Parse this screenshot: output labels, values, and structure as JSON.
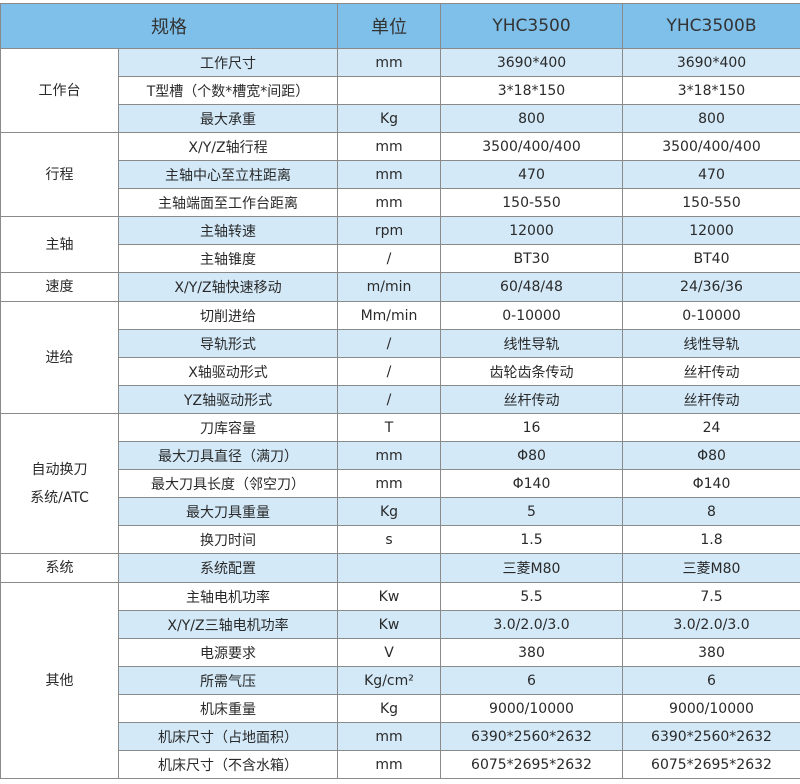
{
  "header": {
    "spec": "规格",
    "unit": "单位",
    "model_a": "YHC3500",
    "model_b": "YHC3500B"
  },
  "colors": {
    "header_bg": "#7fc0ea",
    "alt_row_bg": "#d3e9f8",
    "border": "#8a8a8a"
  },
  "groups": [
    {
      "name": "工作台",
      "rows": [
        {
          "item": "工作尺寸",
          "unit": "mm",
          "a": "3690*400",
          "b": "3690*400"
        },
        {
          "item": "T型槽（个数*槽宽*间距）",
          "unit": "",
          "a": "3*18*150",
          "b": "3*18*150"
        },
        {
          "item": "最大承重",
          "unit": "Kg",
          "a": "800",
          "b": "800"
        }
      ]
    },
    {
      "name": "行程",
      "rows": [
        {
          "item": "X/Y/Z轴行程",
          "unit": "mm",
          "a": "3500/400/400",
          "b": "3500/400/400"
        },
        {
          "item": "主轴中心至立柱距离",
          "unit": "mm",
          "a": "470",
          "b": "470"
        },
        {
          "item": "主轴端面至工作台距离",
          "unit": "mm",
          "a": "150-550",
          "b": "150-550"
        }
      ]
    },
    {
      "name": "主轴",
      "rows": [
        {
          "item": "主轴转速",
          "unit": "rpm",
          "a": "12000",
          "b": "12000"
        },
        {
          "item": "主轴锥度",
          "unit": "/",
          "a": "BT30",
          "b": "BT40"
        }
      ]
    },
    {
      "name": "速度",
      "rows": [
        {
          "item": "X/Y/Z轴快速移动",
          "unit": "m/min",
          "a": "60/48/48",
          "b": "24/36/36"
        }
      ]
    },
    {
      "name": "进给",
      "rows": [
        {
          "item": "切削进给",
          "unit": "Mm/min",
          "a": "0-10000",
          "b": "0-10000"
        },
        {
          "item": "导轨形式",
          "unit": "/",
          "a": "线性导轨",
          "b": "线性导轨"
        },
        {
          "item": "X轴驱动形式",
          "unit": "/",
          "a": "齿轮齿条传动",
          "b": "丝杆传动"
        },
        {
          "item": "YZ轴驱动形式",
          "unit": "/",
          "a": "丝杆传动",
          "b": "丝杆传动"
        }
      ]
    },
    {
      "name": "自动换刀\n系统/ATC",
      "rows": [
        {
          "item": "刀库容量",
          "unit": "T",
          "a": "16",
          "b": "24"
        },
        {
          "item": "最大刀具直径（满刀）",
          "unit": "mm",
          "a": "Φ80",
          "b": "Φ80"
        },
        {
          "item": "最大刀具长度（邻空刀）",
          "unit": "mm",
          "a": "Φ140",
          "b": "Φ140"
        },
        {
          "item": "最大刀具重量",
          "unit": "Kg",
          "a": "5",
          "b": "8"
        },
        {
          "item": "换刀时间",
          "unit": "s",
          "a": "1.5",
          "b": "1.8"
        }
      ]
    },
    {
      "name": "系统",
      "rows": [
        {
          "item": "系统配置",
          "unit": "",
          "a": "三菱M80",
          "b": "三菱M80"
        }
      ]
    },
    {
      "name": "其他",
      "rows": [
        {
          "item": "主轴电机功率",
          "unit": "Kw",
          "a": "5.5",
          "b": "7.5"
        },
        {
          "item": "X/Y/Z三轴电机功率",
          "unit": "Kw",
          "a": "3.0/2.0/3.0",
          "b": "3.0/2.0/3.0"
        },
        {
          "item": "电源要求",
          "unit": "V",
          "a": "380",
          "b": "380"
        },
        {
          "item": "所需气压",
          "unit": "Kg/cm²",
          "a": "6",
          "b": "6"
        },
        {
          "item": "机床重量",
          "unit": "Kg",
          "a": "9000/10000",
          "b": "9000/10000"
        },
        {
          "item": "机床尺寸（占地面积）",
          "unit": "mm",
          "a": "6390*2560*2632",
          "b": "6390*2560*2632"
        },
        {
          "item": "机床尺寸（不含水箱）",
          "unit": "mm",
          "a": "6075*2695*2632",
          "b": "6075*2695*2632"
        }
      ]
    }
  ]
}
